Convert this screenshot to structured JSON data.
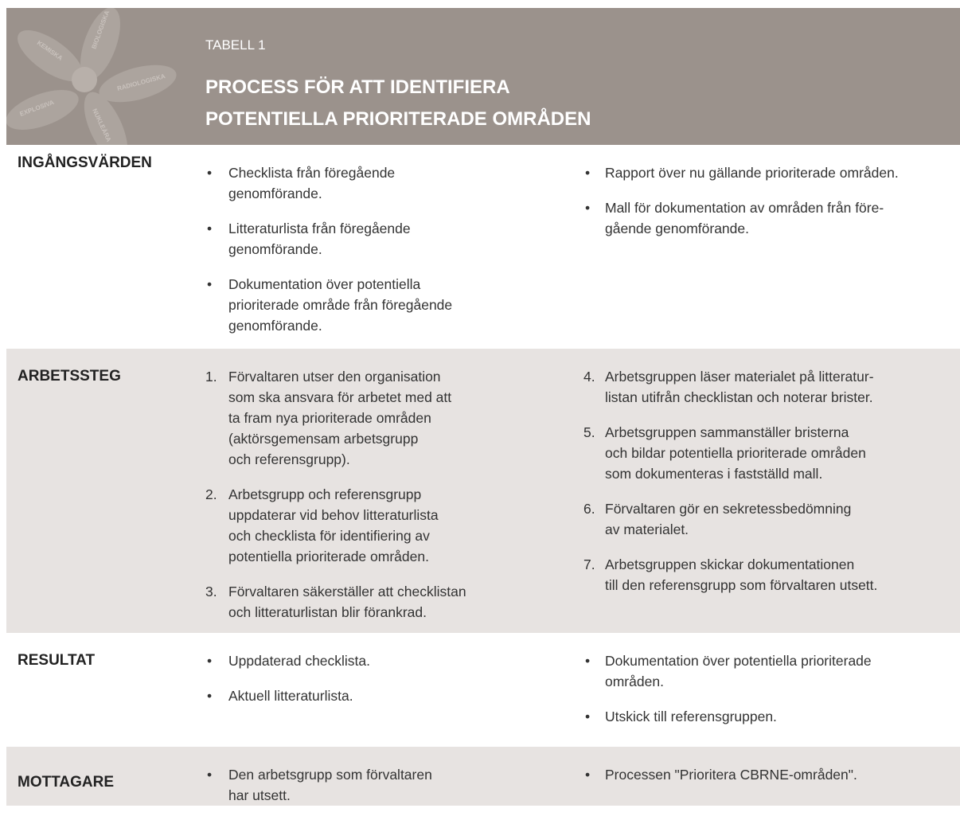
{
  "header": {
    "label": "TABELL 1",
    "title": [
      "PROCESS FÖR ATT IDENTIFIERA",
      "POTENTIELLA PRIORITERADE OMRÅDEN"
    ],
    "emblem": [
      "KEMISKA",
      "BIOLOGISKA",
      "RADIOLOGISKA",
      "NUKLEÄRA",
      "EXPLOSIVA"
    ]
  },
  "table": {
    "rows": [
      {
        "heading": "INGÅNGSVÄRDEN",
        "columns": [
          [
            {
              "lines": [
                "Checklista från föregående",
                "genomförande."
              ]
            },
            {
              "lines": [
                "Litteraturlista från föregående",
                "genomförande."
              ]
            },
            {
              "lines": [
                "Dokumentation över potentiella",
                "prioriterade område från föregående",
                "genomförande."
              ]
            }
          ],
          [
            {
              "lines": [
                "Rapport över nu gällande prioriterade områden."
              ]
            },
            {
              "lines": [
                "Mall för dokumentation av områden från före-",
                "gående genomförande."
              ]
            }
          ]
        ]
      },
      {
        "heading": "ARBETSSTEG",
        "columns": [
          [
            {
              "marker": "1.",
              "lines": [
                "Förvaltaren utser den organisation",
                "som ska ansvara för arbetet med att",
                "ta fram nya prioriterade områden",
                "(aktörsgemensam arbetsgrupp",
                "och referensgrupp)."
              ]
            },
            {
              "marker": "2.",
              "lines": [
                "Arbetsgrupp och referensgrupp",
                "uppdaterar vid behov litteraturlista",
                "och checklista för identifiering av",
                "potentiella prioriterade områden."
              ]
            },
            {
              "marker": "3.",
              "lines": [
                "Förvaltaren säkerställer att checklistan",
                "och litteraturlistan blir förankrad."
              ]
            }
          ],
          [
            {
              "marker": "4.",
              "lines": [
                "Arbetsgruppen läser materialet på litteratur-",
                "listan utifrån checklistan och noterar brister."
              ]
            },
            {
              "marker": "5.",
              "lines": [
                "Arbetsgruppen sammanställer bristerna",
                "och bildar potentiella prioriterade områden",
                "som dokumenteras i fastställd mall."
              ]
            },
            {
              "marker": "6.",
              "lines": [
                "Förvaltaren gör en sekretessbedömning",
                "av materialet."
              ]
            },
            {
              "marker": "7.",
              "lines": [
                "Arbetsgruppen skickar dokumentationen",
                "till den referensgrupp som förvaltaren utsett."
              ]
            }
          ]
        ]
      },
      {
        "heading": "RESULTAT",
        "columns": [
          [
            {
              "lines": [
                "Uppdaterad checklista."
              ]
            },
            {
              "lines": [
                "Aktuell litteraturlista."
              ]
            }
          ],
          [
            {
              "lines": [
                "Dokumentation över potentiella prioriterade",
                "områden."
              ]
            },
            {
              "lines": [
                "Utskick till referensgruppen."
              ]
            }
          ]
        ]
      },
      {
        "heading": "MOTTAGARE",
        "columns": [
          [
            {
              "lines": [
                "Den arbetsgrupp som förvaltaren",
                "har utsett."
              ]
            }
          ],
          [
            {
              "lines": [
                "Processen \"Prioritera CBRNE-områden\"."
              ]
            }
          ]
        ]
      }
    ]
  }
}
